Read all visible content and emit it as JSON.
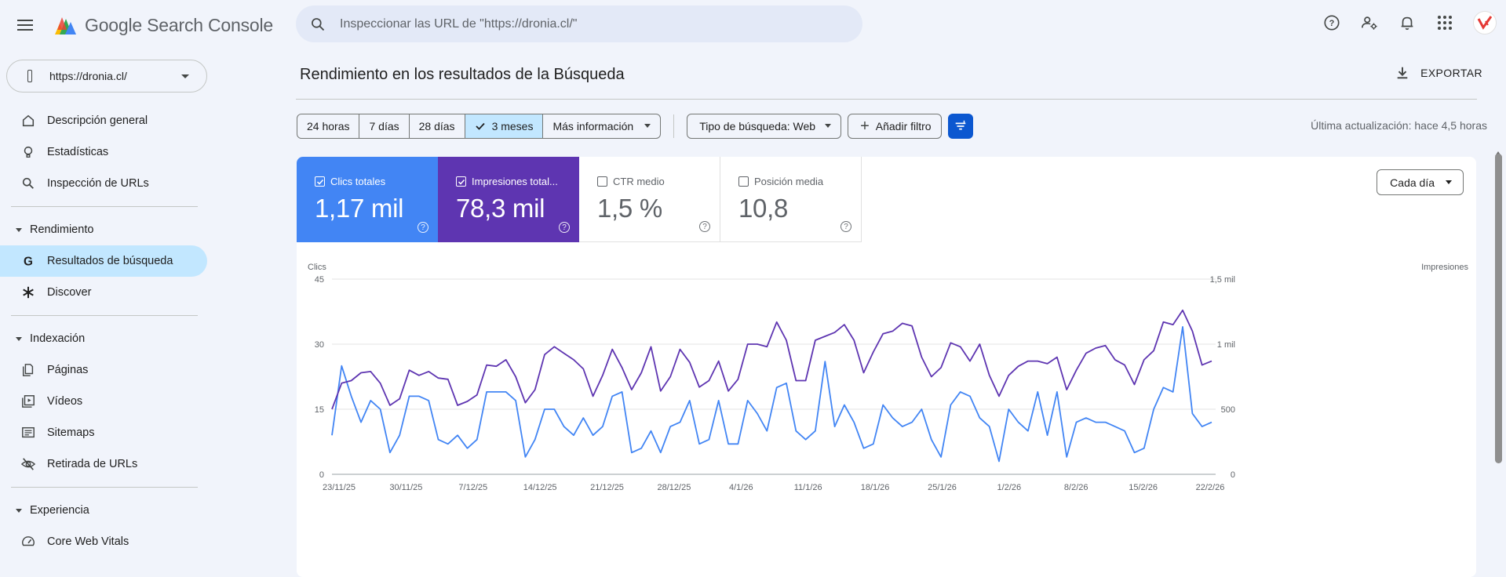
{
  "app": {
    "title": "Google Search Console",
    "search_placeholder": "Inspeccionar las URL de \"https://dronia.cl/\""
  },
  "property": {
    "url": "https://dronia.cl/"
  },
  "sidebar": {
    "items_top": [
      {
        "label": "Descripción general",
        "icon": "home-icon"
      },
      {
        "label": "Estadísticas",
        "icon": "lightbulb-icon"
      },
      {
        "label": "Inspección de URLs",
        "icon": "search-icon"
      }
    ],
    "sections": [
      {
        "label": "Rendimiento",
        "items": [
          {
            "label": "Resultados de búsqueda",
            "icon": "google-g-icon",
            "active": true
          },
          {
            "label": "Discover",
            "icon": "asterisk-icon"
          }
        ]
      },
      {
        "label": "Indexación",
        "items": [
          {
            "label": "Páginas",
            "icon": "pages-icon"
          },
          {
            "label": "Vídeos",
            "icon": "video-icon"
          },
          {
            "label": "Sitemaps",
            "icon": "sitemap-icon"
          },
          {
            "label": "Retirada de URLs",
            "icon": "eye-off-icon"
          }
        ]
      },
      {
        "label": "Experiencia",
        "items": [
          {
            "label": "Core Web Vitals",
            "icon": "gauge-icon"
          }
        ]
      }
    ]
  },
  "main": {
    "title": "Rendimiento en los resultados de la Búsqueda",
    "export_label": "EXPORTAR",
    "date_ranges": [
      "24 horas",
      "7 días",
      "28 días",
      "3 meses",
      "Más información"
    ],
    "selected_range": "3 meses",
    "search_type": "Tipo de búsqueda: Web",
    "add_filter": "Añadir filtro",
    "last_update": "Última actualización: hace 4,5 horas",
    "granularity": "Cada día"
  },
  "metrics": [
    {
      "label": "Clics totales",
      "value": "1,17 mil",
      "checked": true,
      "color": "#4285f4"
    },
    {
      "label": "Impresiones total...",
      "value": "78,3 mil",
      "checked": true,
      "color": "#5e35b1"
    },
    {
      "label": "CTR medio",
      "value": "1,5 %",
      "checked": false
    },
    {
      "label": "Posición media",
      "value": "10,8",
      "checked": false
    }
  ],
  "chart_data": {
    "type": "line",
    "x_tick_labels": [
      "23/11/25",
      "30/11/25",
      "7/12/25",
      "14/12/25",
      "21/12/25",
      "28/12/25",
      "4/1/26",
      "11/1/26",
      "18/1/26",
      "25/1/26",
      "1/2/26",
      "8/2/26",
      "15/2/26",
      "22/2/26"
    ],
    "left_axis": {
      "label": "Clics",
      "ticks": [
        "0",
        "15",
        "30",
        "45"
      ],
      "ylim": [
        0,
        45
      ]
    },
    "right_axis": {
      "label": "Impresiones",
      "ticks": [
        "0",
        "500",
        "1 mil",
        "1,5 mil"
      ],
      "ylim": [
        0,
        1500
      ]
    },
    "series": [
      {
        "name": "Clics totales",
        "axis": "left",
        "color": "#4285f4",
        "values": [
          9,
          25,
          18,
          12,
          17,
          15,
          5,
          9,
          18,
          18,
          17,
          8,
          7,
          9,
          6,
          8,
          19,
          19,
          19,
          17,
          4,
          8,
          15,
          15,
          11,
          9,
          13,
          9,
          11,
          18,
          19,
          5,
          6,
          10,
          5,
          11,
          12,
          17,
          7,
          8,
          17,
          7,
          7,
          17,
          14,
          10,
          20,
          21,
          10,
          8,
          10,
          26,
          11,
          16,
          12,
          6,
          7,
          16,
          13,
          11,
          12,
          15,
          8,
          4,
          16,
          19,
          18,
          13,
          11,
          3,
          15,
          12,
          10,
          19,
          9,
          19,
          4,
          12,
          13,
          12,
          12,
          11,
          10,
          5,
          6,
          15,
          20,
          19,
          34,
          14,
          11,
          12
        ]
      },
      {
        "name": "Impresiones",
        "axis": "right",
        "color": "#5e35b1",
        "values": [
          500,
          700,
          720,
          780,
          790,
          700,
          530,
          580,
          800,
          760,
          790,
          740,
          730,
          530,
          560,
          610,
          840,
          830,
          880,
          750,
          550,
          650,
          920,
          980,
          930,
          880,
          810,
          600,
          760,
          960,
          820,
          650,
          780,
          980,
          640,
          750,
          960,
          860,
          670,
          720,
          870,
          640,
          730,
          1000,
          1000,
          980,
          1170,
          1030,
          720,
          720,
          1030,
          1060,
          1090,
          1150,
          1030,
          780,
          940,
          1080,
          1100,
          1160,
          1140,
          900,
          750,
          820,
          1010,
          980,
          870,
          1000,
          760,
          600,
          760,
          830,
          870,
          870,
          850,
          900,
          650,
          800,
          930,
          970,
          990,
          880,
          840,
          690,
          880,
          950,
          1170,
          1150,
          1260,
          1100,
          840,
          870
        ]
      }
    ]
  }
}
